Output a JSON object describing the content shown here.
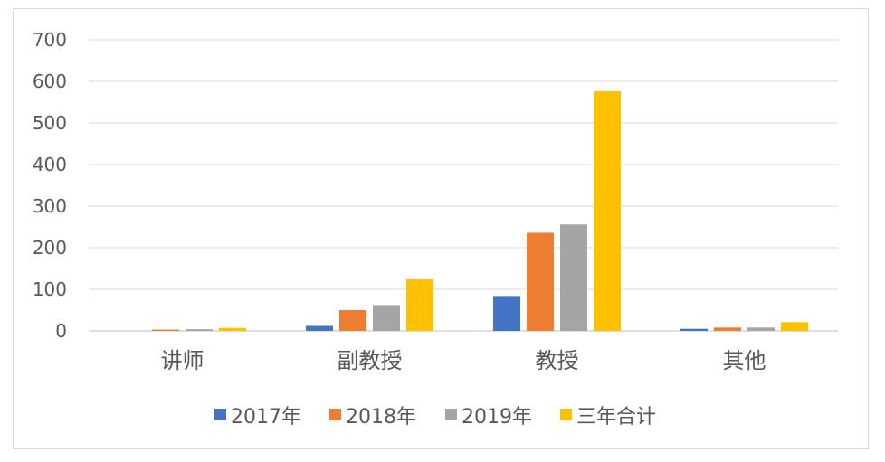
{
  "chart_data": {
    "type": "bar",
    "categories": [
      "讲师",
      "副教授",
      "教授",
      "其他"
    ],
    "series": [
      {
        "name": "2017年",
        "color": "#4472C4",
        "values": [
          0,
          12,
          84,
          5
        ]
      },
      {
        "name": "2018年",
        "color": "#ED7D31",
        "values": [
          3,
          50,
          236,
          8
        ]
      },
      {
        "name": "2019年",
        "color": "#A5A5A5",
        "values": [
          4,
          62,
          256,
          8
        ]
      },
      {
        "name": "三年合计",
        "color": "#FFC000",
        "values": [
          7,
          124,
          576,
          21
        ]
      }
    ],
    "y_ticks": [
      "0",
      "100",
      "200",
      "300",
      "400",
      "500",
      "600",
      "700"
    ],
    "ylim": [
      0,
      700
    ],
    "grid": true,
    "legend": "bottom"
  }
}
